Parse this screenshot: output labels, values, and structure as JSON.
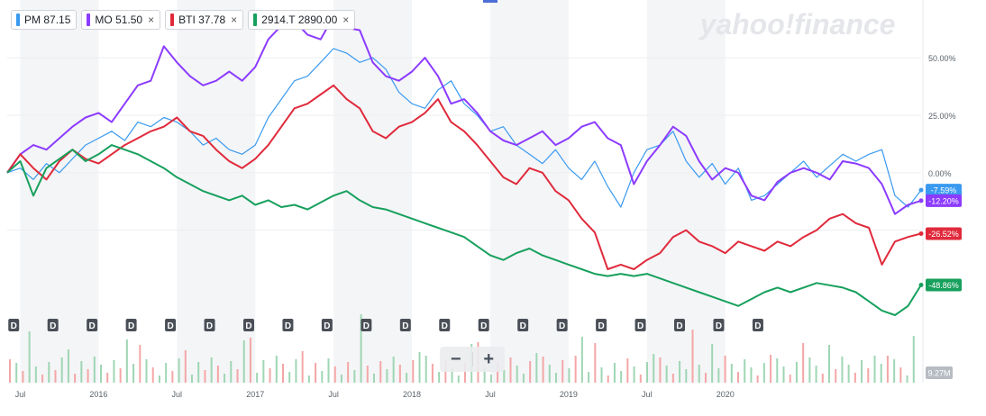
{
  "legend": [
    {
      "symbol": "PM",
      "value": "87.15",
      "color": "#3a9af0",
      "closable": false
    },
    {
      "symbol": "MO",
      "value": "51.50",
      "color": "#8c3bff",
      "closable": true
    },
    {
      "symbol": "BTI",
      "value": "37.78",
      "color": "#e02a3b",
      "closable": true
    },
    {
      "symbol": "2914.T",
      "value": "2890.00",
      "color": "#17a05d",
      "closable": true
    }
  ],
  "close_glyph": "×",
  "watermark": "yahoo!finance",
  "zoom": {
    "minus": "−",
    "plus": "+"
  },
  "chart_data": {
    "type": "line",
    "title": "",
    "x": [
      0,
      1,
      2,
      3,
      4,
      5,
      6,
      7,
      8,
      9,
      10,
      11,
      12,
      13,
      14,
      15,
      16,
      17,
      18,
      19,
      20,
      21,
      22,
      23,
      24,
      25,
      26,
      27,
      28,
      29,
      30,
      31,
      32,
      33,
      34,
      35,
      36,
      37,
      38,
      39,
      40,
      41,
      42,
      43,
      44,
      45,
      46,
      47,
      48,
      49,
      50,
      51,
      52,
      53,
      54,
      55,
      56,
      57,
      58,
      59,
      60,
      61,
      62,
      63,
      64,
      65,
      66,
      67,
      68,
      69,
      70
    ],
    "x_unit": "months since Jun 2015",
    "series": [
      {
        "name": "PM",
        "color": "#3a9af0",
        "end_label": "-7.59%",
        "values": [
          0,
          2,
          -3,
          4,
          0,
          6,
          12,
          15,
          18,
          14,
          22,
          20,
          24,
          22,
          18,
          12,
          15,
          10,
          8,
          12,
          24,
          32,
          40,
          42,
          48,
          54,
          52,
          48,
          50,
          45,
          35,
          30,
          28,
          36,
          40,
          30,
          25,
          18,
          20,
          12,
          8,
          4,
          10,
          2,
          -3,
          5,
          -6,
          -15,
          0,
          10,
          12,
          18,
          5,
          -2,
          4,
          -5,
          2,
          -12,
          -10,
          -5,
          0,
          5,
          -2,
          3,
          8,
          5,
          8,
          10,
          -10,
          -15,
          -7.59
        ]
      },
      {
        "name": "MO",
        "color": "#8c3bff",
        "end_label": "-12.20%",
        "values": [
          0,
          8,
          12,
          10,
          15,
          20,
          24,
          26,
          22,
          30,
          38,
          40,
          55,
          48,
          42,
          38,
          40,
          44,
          40,
          46,
          58,
          64,
          66,
          60,
          58,
          68,
          63,
          62,
          48,
          42,
          40,
          44,
          50,
          42,
          30,
          32,
          26,
          18,
          14,
          12,
          15,
          18,
          12,
          15,
          20,
          22,
          15,
          12,
          -5,
          5,
          12,
          20,
          16,
          5,
          -3,
          2,
          0,
          -10,
          -12,
          -4,
          0,
          2,
          0,
          -3,
          5,
          4,
          2,
          -5,
          -18,
          -14,
          -12.2
        ]
      },
      {
        "name": "BTI",
        "color": "#e02a3b",
        "end_label": "-26.52%",
        "values": [
          0,
          8,
          2,
          -3,
          5,
          10,
          6,
          4,
          8,
          12,
          15,
          18,
          20,
          24,
          18,
          16,
          10,
          5,
          2,
          6,
          12,
          20,
          28,
          30,
          34,
          38,
          32,
          28,
          18,
          15,
          20,
          22,
          26,
          32,
          22,
          18,
          12,
          5,
          -2,
          -5,
          2,
          0,
          -8,
          -12,
          -20,
          -26,
          -42,
          -40,
          -42,
          -38,
          -35,
          -28,
          -25,
          -30,
          -32,
          -35,
          -30,
          -32,
          -34,
          -30,
          -32,
          -28,
          -25,
          -20,
          -18,
          -22,
          -24,
          -40,
          -30,
          -28,
          -26.52
        ]
      },
      {
        "name": "2914.T",
        "color": "#17a05d",
        "end_label": "-48.86%",
        "values": [
          0,
          5,
          -10,
          2,
          6,
          10,
          5,
          8,
          12,
          10,
          8,
          5,
          2,
          -2,
          -5,
          -8,
          -10,
          -12,
          -10,
          -14,
          -12,
          -15,
          -14,
          -16,
          -13,
          -10,
          -8,
          -12,
          -15,
          -16,
          -18,
          -20,
          -22,
          -24,
          -26,
          -28,
          -32,
          -36,
          -38,
          -35,
          -33,
          -36,
          -38,
          -40,
          -42,
          -44,
          -45,
          -44,
          -45,
          -44,
          -46,
          -48,
          -50,
          -52,
          -54,
          -56,
          -58,
          -55,
          -52,
          -50,
          -52,
          -50,
          -48,
          -49,
          -50,
          -52,
          -56,
          -60,
          -62,
          -58,
          -48.86
        ]
      }
    ],
    "y_ticks": [
      {
        "value": 50,
        "label": "50.00%"
      },
      {
        "value": 25,
        "label": "25.00%"
      },
      {
        "value": 0,
        "label": "0.00%"
      }
    ],
    "ylim": [
      -62,
      72
    ],
    "x_ticks": [
      {
        "x": 1,
        "label": "Jul"
      },
      {
        "x": 7,
        "label": "2016"
      },
      {
        "x": 13,
        "label": "Jul"
      },
      {
        "x": 19,
        "label": "2017"
      },
      {
        "x": 25,
        "label": "Jul"
      },
      {
        "x": 31,
        "label": "2018"
      },
      {
        "x": 37,
        "label": "Jul"
      },
      {
        "x": 43,
        "label": "2019"
      },
      {
        "x": 49,
        "label": "Jul"
      },
      {
        "x": 55,
        "label": "2020"
      }
    ],
    "dividend_markers": {
      "label": "D",
      "x": [
        0.5,
        3.5,
        6.5,
        9.5,
        12.5,
        15.5,
        18.5,
        21.5,
        24.5,
        27.5,
        30.5,
        33.5,
        36.5,
        39.5,
        42.5,
        45.5,
        48.5,
        51.5,
        54.5,
        57.5
      ]
    },
    "volume": {
      "bars": 140,
      "last_label": "9.27M"
    }
  }
}
